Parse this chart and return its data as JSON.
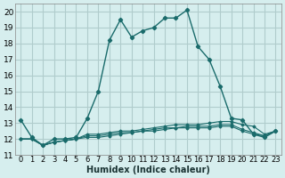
{
  "background_color": "#d6eeee",
  "grid_color": "#b0cccc",
  "line_color": "#1a6b6b",
  "xlabel": "Humidex (Indice chaleur)",
  "ylim": [
    11,
    20.5
  ],
  "xlim": [
    -0.5,
    23.5
  ],
  "yticks": [
    11,
    12,
    13,
    14,
    15,
    16,
    17,
    18,
    19,
    20
  ],
  "xticks": [
    0,
    1,
    2,
    3,
    4,
    5,
    6,
    7,
    8,
    9,
    10,
    11,
    12,
    13,
    14,
    15,
    16,
    17,
    18,
    19,
    20,
    21,
    22,
    23
  ],
  "series": [
    {
      "x": [
        0,
        1,
        2,
        3,
        4,
        5,
        6,
        7,
        8,
        9,
        10,
        11,
        12,
        13,
        14,
        15,
        16,
        17,
        18,
        19,
        20,
        21,
        22,
        23
      ],
      "y": [
        13.2,
        12.1,
        11.6,
        12.0,
        12.0,
        12.1,
        13.3,
        15.0,
        18.2,
        19.5,
        18.4,
        18.8,
        19.0,
        19.6,
        19.6,
        20.1,
        17.8,
        17.0,
        15.3,
        13.3,
        13.2,
        12.3,
        12.1,
        12.5
      ]
    },
    {
      "x": [
        0,
        1,
        2,
        3,
        4,
        5,
        6,
        7,
        8,
        9,
        10,
        11,
        12,
        13,
        14,
        15,
        16,
        17,
        18,
        19,
        20,
        21,
        22,
        23
      ],
      "y": [
        12.0,
        12.0,
        11.6,
        11.8,
        11.9,
        12.0,
        12.1,
        12.1,
        12.2,
        12.3,
        12.4,
        12.5,
        12.5,
        12.6,
        12.7,
        12.7,
        12.7,
        12.7,
        12.8,
        12.8,
        12.5,
        12.3,
        12.2,
        12.5
      ]
    },
    {
      "x": [
        0,
        1,
        2,
        3,
        4,
        5,
        6,
        7,
        8,
        9,
        10,
        11,
        12,
        13,
        14,
        15,
        16,
        17,
        18,
        19,
        20,
        21,
        22,
        23
      ],
      "y": [
        12.0,
        12.0,
        11.6,
        11.8,
        11.9,
        12.0,
        12.2,
        12.2,
        12.3,
        12.4,
        12.4,
        12.5,
        12.6,
        12.7,
        12.7,
        12.8,
        12.8,
        12.8,
        12.9,
        12.9,
        12.6,
        12.4,
        12.2,
        12.5
      ]
    },
    {
      "x": [
        0,
        1,
        2,
        3,
        4,
        5,
        6,
        7,
        8,
        9,
        10,
        11,
        12,
        13,
        14,
        15,
        16,
        17,
        18,
        19,
        20,
        21,
        22,
        23
      ],
      "y": [
        12.0,
        12.0,
        11.6,
        11.8,
        11.9,
        12.0,
        12.3,
        12.3,
        12.4,
        12.5,
        12.5,
        12.6,
        12.7,
        12.8,
        12.9,
        12.9,
        12.9,
        13.0,
        13.1,
        13.1,
        12.9,
        12.8,
        12.3,
        12.5
      ]
    }
  ]
}
